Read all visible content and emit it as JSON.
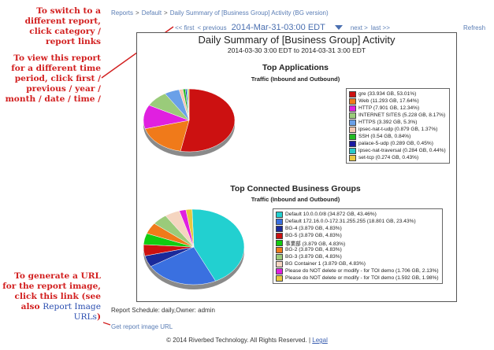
{
  "annotations": {
    "switch_report": "To switch to a different report, click category / report links",
    "time_period": "To view this report for a different time period, click first / previous / year / month / date / time /",
    "url_text": "To generate a URL for the report image, click this link (see also",
    "url_link": "Report Image URLs",
    "url_close": ")"
  },
  "breadcrumb": {
    "reports": "Reports",
    "default": "Default",
    "current": "Daily Summary of [Business Group] Activity (BG version)",
    "separator": ">"
  },
  "nav": {
    "first": "<< first",
    "previous": "< previous",
    "date": "2014-Mar-31-03:00 EDT",
    "next": "next >",
    "last": "last >>",
    "refresh": "Refresh"
  },
  "report": {
    "title": "Daily Summary of [Business Group] Activity",
    "range": "2014-03-30 3:00 EDT to 2014-03-31 3:00 EDT"
  },
  "chart_data": [
    {
      "type": "pie",
      "title": "Top Applications",
      "subtitle": "Traffic (Inbound and Outbound)",
      "slices": [
        {
          "label": "gre (33.934 GB, 53.01%)",
          "value": 53.01,
          "color": "#cc1111"
        },
        {
          "label": "Web (11.293 GB, 17.64%)",
          "value": 17.64,
          "color": "#f07a1a"
        },
        {
          "label": "HTTP (7.901 GB, 12.34%)",
          "value": 12.34,
          "color": "#e020e0"
        },
        {
          "label": "INTERNET SITES (5.228 GB, 8.17%)",
          "value": 8.17,
          "color": "#9acb7a"
        },
        {
          "label": "HTTPS (3.392 GB, 5.3%)",
          "value": 5.3,
          "color": "#6aa0e8"
        },
        {
          "label": "ipsec-nat-t-udp (0.879 GB, 1.37%)",
          "value": 1.37,
          "color": "#f5c8b0"
        },
        {
          "label": "SSH (0.54 GB, 0.84%)",
          "value": 0.84,
          "color": "#22bb22"
        },
        {
          "label": "palace-5-udp (0.289 GB, 0.45%)",
          "value": 0.45,
          "color": "#1a1aa0"
        },
        {
          "label": "ipsec-nat-traversal (0.284 GB, 0.44%)",
          "value": 0.44,
          "color": "#28c8c8"
        },
        {
          "label": "set-tcp (0.274 GB, 0.43%)",
          "value": 0.43,
          "color": "#e8c840"
        }
      ]
    },
    {
      "type": "pie",
      "title": "Top Connected Business Groups",
      "subtitle": "Traffic (Inbound and Outbound)",
      "slices": [
        {
          "label": "Default 10.0.0.0/8 (34.872 GB, 43.46%)",
          "value": 43.46,
          "color": "#22d0d0"
        },
        {
          "label": "Default 172.16.0.0-172.31.255.255 (18.801 GB, 23.43%)",
          "value": 23.43,
          "color": "#3a70e0"
        },
        {
          "label": "BG-4 (3.879 GB, 4.83%)",
          "value": 4.83,
          "color": "#1a2a9a"
        },
        {
          "label": "BG-5 (3.879 GB, 4.83%)",
          "value": 4.83,
          "color": "#cc1111"
        },
        {
          "label": "事業部 (3.879 GB, 4.83%)",
          "value": 4.83,
          "color": "#11cc11"
        },
        {
          "label": "BG-2 (3.879 GB, 4.83%)",
          "value": 4.83,
          "color": "#f07a1a"
        },
        {
          "label": "BG-3 (3.879 GB, 4.83%)",
          "value": 4.83,
          "color": "#9acb7a"
        },
        {
          "label": "BG Container 1 (3.879 GB, 4.83%)",
          "value": 4.83,
          "color": "#f5d5c0"
        },
        {
          "label": "Please do NOT delete or modify - for TOI demo (1.706 GB, 2.13%)",
          "value": 2.13,
          "color": "#e020e0"
        },
        {
          "label": "Please do NOT delete or modify - for TOI demo (1.592 GB, 1.98%)",
          "value": 1.98,
          "color": "#e8c840"
        }
      ]
    }
  ],
  "schedule": "Report Schedule: daily,Owner: admin",
  "get_image_url": "Get report image URL",
  "footer": {
    "copyright": "© 2014 Riverbed Technology. All Rights Reserved. |",
    "legal": "Legal"
  }
}
